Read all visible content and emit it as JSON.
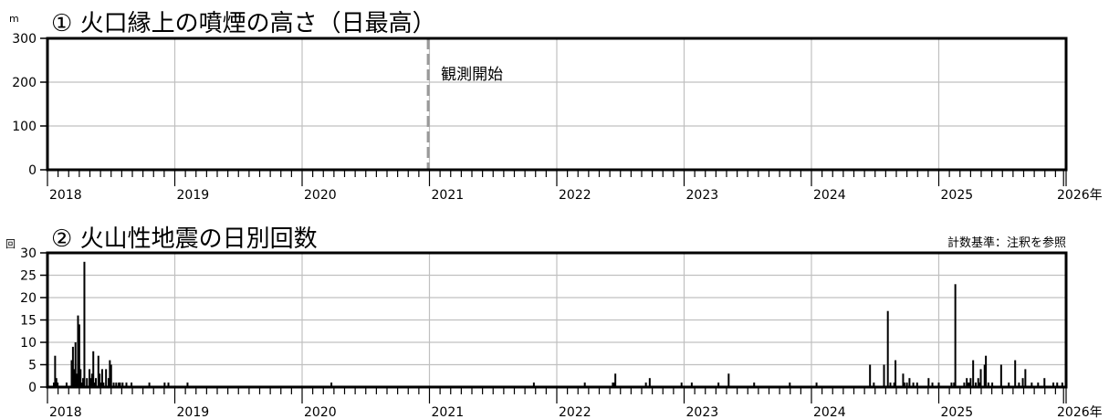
{
  "chart_data": [
    {
      "type": "line",
      "title": "① 火口縁上の噴煙の高さ（日最高）",
      "unit": "m",
      "ylim": [
        0,
        300
      ],
      "yticks": [
        0,
        100,
        200,
        300
      ],
      "xlim": [
        2018.0,
        2026.0
      ],
      "xticks": [
        2018,
        2019,
        2020,
        2021,
        2022,
        2023,
        2024,
        2025,
        2026
      ],
      "xtick_labels": [
        "2018",
        "2019",
        "2020",
        "2021",
        "2022",
        "2023",
        "2024",
        "2025",
        "2026年"
      ],
      "grid": true,
      "annotation": {
        "text": "観測開始",
        "x": 2020.99
      },
      "series": []
    },
    {
      "type": "bar",
      "title": "② 火山性地震の日別回数",
      "unit": "回",
      "note": "計数基準：注釈を参照",
      "ylim": [
        0,
        30
      ],
      "yticks": [
        0,
        5,
        10,
        15,
        20,
        25,
        30
      ],
      "xlim": [
        2018.0,
        2026.0
      ],
      "xticks": [
        2018,
        2019,
        2020,
        2021,
        2022,
        2023,
        2024,
        2025,
        2026
      ],
      "xtick_labels": [
        "2018",
        "2019",
        "2020",
        "2021",
        "2022",
        "2023",
        "2024",
        "2025",
        "2026年"
      ],
      "grid": true,
      "x": [
        2018.05,
        2018.06,
        2018.07,
        2018.08,
        2018.15,
        2018.19,
        2018.2,
        2018.21,
        2018.22,
        2018.23,
        2018.24,
        2018.25,
        2018.26,
        2018.27,
        2018.28,
        2018.29,
        2018.31,
        2018.33,
        2018.34,
        2018.35,
        2018.36,
        2018.37,
        2018.38,
        2018.4,
        2018.41,
        2018.42,
        2018.43,
        2018.44,
        2018.46,
        2018.48,
        2018.49,
        2018.5,
        2018.52,
        2018.54,
        2018.56,
        2018.57,
        2018.59,
        2018.62,
        2018.66,
        2018.8,
        2018.92,
        2018.95,
        2019.1,
        2020.23,
        2021.82,
        2022.22,
        2022.44,
        2022.45,
        2022.46,
        2022.7,
        2022.73,
        2022.98,
        2023.06,
        2023.27,
        2023.35,
        2023.55,
        2023.83,
        2024.04,
        2024.46,
        2024.49,
        2024.57,
        2024.6,
        2024.62,
        2024.65,
        2024.66,
        2024.72,
        2024.73,
        2024.75,
        2024.77,
        2024.8,
        2024.83,
        2024.92,
        2024.95,
        2025.0,
        2025.1,
        2025.12,
        2025.13,
        2025.2,
        2025.22,
        2025.23,
        2025.24,
        2025.25,
        2025.27,
        2025.29,
        2025.31,
        2025.32,
        2025.33,
        2025.36,
        2025.37,
        2025.39,
        2025.42,
        2025.49,
        2025.55,
        2025.6,
        2025.63,
        2025.66,
        2025.68,
        2025.73,
        2025.78,
        2025.83,
        2025.9,
        2025.93,
        2025.97
      ],
      "values": [
        1,
        7,
        2,
        1,
        1,
        6,
        9,
        4,
        10,
        3,
        16,
        14,
        4,
        1,
        2,
        28,
        2,
        4,
        2,
        3,
        8,
        1,
        2,
        7,
        3,
        1,
        4,
        1,
        4,
        2,
        6,
        5,
        1,
        1,
        1,
        1,
        1,
        1,
        1,
        1,
        1,
        1,
        1,
        1,
        1,
        1,
        1,
        1,
        3,
        1,
        2,
        1,
        1,
        1,
        3,
        1,
        1,
        1,
        5,
        1,
        5,
        17,
        1,
        1,
        6,
        3,
        1,
        1,
        2,
        1,
        1,
        2,
        1,
        1,
        1,
        1,
        23,
        1,
        2,
        1,
        1,
        2,
        6,
        1,
        2,
        1,
        4,
        5,
        7,
        1,
        1,
        5,
        1,
        6,
        1,
        2,
        4,
        1,
        1,
        2,
        1,
        1,
        1
      ]
    }
  ]
}
